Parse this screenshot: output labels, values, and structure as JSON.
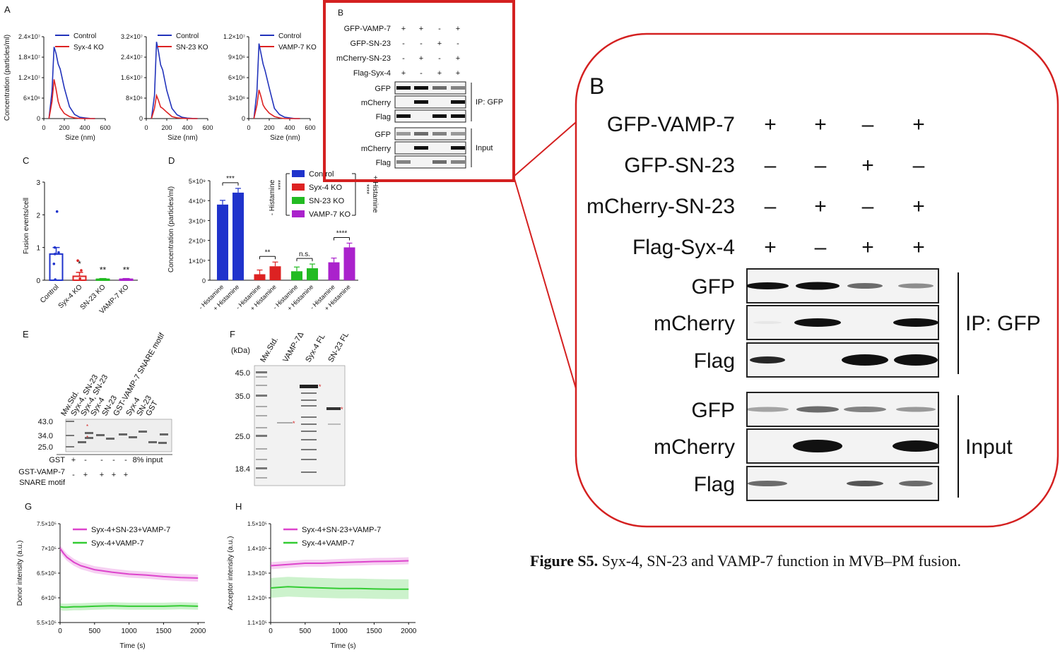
{
  "figure": {
    "caption_label": "Figure S5.",
    "caption_text": "Syx-4, SN-23 and VAMP-7 function in MVB–PM fusion.",
    "accent_color": "#d42020"
  },
  "panel_a": {
    "letter": "A",
    "ylabel": "Concentration (particles/ml)",
    "xlabel": "Size (nm)",
    "x_ticks": [
      "0",
      "200",
      "400",
      "600"
    ],
    "plots": [
      {
        "legend": [
          "Control",
          "Syx-4 KO"
        ],
        "y_ticks": [
          "0",
          "6×10⁶",
          "1.2×10⁷",
          "1.8×10⁷",
          "2.4×10⁷"
        ]
      },
      {
        "legend": [
          "Control",
          "SN-23 KO"
        ],
        "y_ticks": [
          "0",
          "8×10⁶",
          "1.6×10⁷",
          "2.4×10⁷",
          "3.2×10⁷"
        ]
      },
      {
        "legend": [
          "Control",
          "VAMP-7 KO"
        ],
        "y_ticks": [
          "0",
          "3×10⁶",
          "6×10⁶",
          "9×10⁶",
          "1.2×10⁷"
        ]
      }
    ]
  },
  "panel_b_small": {
    "letter": "B",
    "conditions": [
      {
        "label": "GFP-VAMP-7",
        "signs": [
          "+",
          "+",
          "-",
          "+"
        ]
      },
      {
        "label": "GFP-SN-23",
        "signs": [
          "-",
          "-",
          "+",
          "-"
        ]
      },
      {
        "label": "mCherry-SN-23",
        "signs": [
          "-",
          "+",
          "-",
          "+"
        ]
      },
      {
        "label": "Flag-Syx-4",
        "signs": [
          "+",
          "-",
          "+",
          "+"
        ]
      }
    ],
    "blots": [
      "GFP",
      "mCherry",
      "Flag",
      "GFP",
      "mCherry",
      "Flag"
    ],
    "group_labels": [
      "IP: GFP",
      "Input"
    ]
  },
  "panel_b_zoom": {
    "letter": "B",
    "conditions": [
      {
        "label": "GFP-VAMP-7",
        "signs": [
          "+",
          "+",
          "–",
          "+"
        ]
      },
      {
        "label": "GFP-SN-23",
        "signs": [
          "–",
          "–",
          "+",
          "–"
        ]
      },
      {
        "label": "mCherry-SN-23",
        "signs": [
          "–",
          "+",
          "–",
          "+"
        ]
      },
      {
        "label": "Flag-Syx-4",
        "signs": [
          "+",
          "–",
          "+",
          "+"
        ]
      }
    ],
    "blots": [
      "GFP",
      "mCherry",
      "Flag",
      "GFP",
      "mCherry",
      "Flag"
    ],
    "group_labels": [
      "IP: GFP",
      "Input"
    ]
  },
  "panel_c": {
    "letter": "C",
    "ylabel": "Fusion events/cell",
    "y_ticks": [
      "0",
      "1",
      "2",
      "3"
    ],
    "categories": [
      "Control",
      "Syx-4 KO",
      "SN-23 KO",
      "VAMP-7 KO"
    ],
    "significance": [
      "",
      "*",
      "**",
      "**"
    ]
  },
  "panel_d": {
    "letter": "D",
    "ylabel": "Concentration (particles/ml)",
    "y_ticks": [
      "0",
      "1×10⁹",
      "2×10⁹",
      "3×10⁹",
      "4×10⁹",
      "5×10⁹"
    ],
    "legend": [
      "Control",
      "Syx-4 KO",
      "SN-23 KO",
      "VAMP-7 KO"
    ],
    "bracket_left": "- Histamine",
    "bracket_right": "+ Histamine",
    "bracket_stars": "****",
    "x_labels": [
      "- Histamine",
      "+ Histamine"
    ],
    "pair_significance": [
      "***",
      "**",
      "n.s.",
      "****"
    ]
  },
  "panel_e": {
    "letter": "E",
    "lane_labels": [
      "Mw.Std.",
      "Syx-4, SN-23",
      "Syx-4, SN-23",
      "Syx-4",
      "SN-23",
      "GST-VAMP-7 SNARE motif",
      "Syx-4",
      "SN-23",
      "GST"
    ],
    "mw_marks": [
      "43.0",
      "34.0",
      "25.0"
    ],
    "row1_label": "GST",
    "row1_signs": [
      "+",
      "-",
      "-",
      "-",
      "-"
    ],
    "row2_label": "GST-VAMP-7",
    "row2_label_b": "SNARE motif",
    "row2_signs": [
      "-",
      "+",
      "+",
      "+",
      "+"
    ],
    "input_label": "8% input"
  },
  "panel_f": {
    "letter": "F",
    "kda_label": "(kDa)",
    "lane_labels": [
      "Mw.Std.",
      "VAMP-7Δ",
      "Syx-4 FL",
      "SN-23 FL"
    ],
    "mw_marks": [
      "45.0",
      "35.0",
      "25.0",
      "18.4"
    ]
  },
  "panel_g": {
    "letter": "G",
    "ylabel": "Donor intensity (a.u.)",
    "xlabel": "Time (s)",
    "x_ticks": [
      "0",
      "500",
      "1000",
      "1500",
      "2000"
    ],
    "y_ticks": [
      "5.5×10⁵",
      "6×10⁵",
      "6.5×10⁵",
      "7×10⁵",
      "7.5×10⁵"
    ],
    "legend": [
      "Syx-4+SN-23+VAMP-7",
      "Syx-4+VAMP-7"
    ]
  },
  "panel_h": {
    "letter": "H",
    "ylabel": "Acceptor intensity (a.u.)",
    "xlabel": "Time (s)",
    "x_ticks": [
      "0",
      "500",
      "1000",
      "1500",
      "2000"
    ],
    "y_ticks": [
      "1.1×10⁵",
      "1.2×10⁵",
      "1.3×10⁵",
      "1.4×10⁵",
      "1.5×10⁵"
    ],
    "legend": [
      "Syx-4+SN-23+VAMP-7",
      "Syx-4+VAMP-7"
    ]
  },
  "chart_data": [
    {
      "type": "line",
      "xlim": [
        0,
        600
      ],
      "ylim": [
        0,
        24000000
      ],
      "x": [
        50,
        80,
        100,
        120,
        140,
        160,
        200,
        250,
        300,
        350,
        400,
        450,
        500
      ],
      "series": [
        {
          "name": "Control",
          "color": "#2233bb",
          "values": [
            0,
            8000000,
            21000000,
            19000000,
            16000000,
            14500000,
            9000000,
            3500000,
            1200000,
            400000,
            200000,
            50000,
            0
          ]
        },
        {
          "name": "Syx-4 KO",
          "color": "#dd2222",
          "values": [
            0,
            5000000,
            11500000,
            8500000,
            5000000,
            3200000,
            1500000,
            600000,
            200000,
            50000,
            0,
            0,
            0
          ]
        }
      ]
    },
    {
      "type": "line",
      "xlim": [
        0,
        600
      ],
      "ylim": [
        0,
        32000000
      ],
      "x": [
        50,
        80,
        100,
        120,
        140,
        160,
        200,
        250,
        300,
        350,
        400,
        450,
        500
      ],
      "series": [
        {
          "name": "Control",
          "color": "#2233bb",
          "values": [
            0,
            9000000,
            30000000,
            26000000,
            21000000,
            19000000,
            11000000,
            4000000,
            1500000,
            500000,
            200000,
            50000,
            0
          ]
        },
        {
          "name": "SN-23 KO",
          "color": "#dd2222",
          "values": [
            0,
            4000000,
            9000000,
            7000000,
            4500000,
            4000000,
            2500000,
            800000,
            300000,
            100000,
            0,
            0,
            0
          ]
        }
      ]
    },
    {
      "type": "line",
      "xlim": [
        0,
        600
      ],
      "ylim": [
        0,
        12000000
      ],
      "x": [
        50,
        80,
        100,
        120,
        140,
        160,
        200,
        250,
        300,
        350,
        400,
        450,
        500
      ],
      "series": [
        {
          "name": "Control",
          "color": "#2233bb",
          "values": [
            0,
            4000000,
            11000000,
            9500000,
            8000000,
            7000000,
            4500000,
            1500000,
            600000,
            200000,
            100000,
            0,
            0
          ]
        },
        {
          "name": "VAMP-7 KO",
          "color": "#dd2222",
          "values": [
            0,
            2000000,
            4200000,
            3200000,
            2000000,
            1500000,
            800000,
            300000,
            100000,
            0,
            0,
            0,
            0
          ]
        }
      ]
    },
    {
      "type": "bar",
      "categories": [
        "Control",
        "Syx-4 KO",
        "SN-23 KO",
        "VAMP-7 KO"
      ],
      "ylim": [
        0,
        3
      ],
      "values": [
        0.8,
        0.12,
        0.03,
        0.03
      ],
      "errors": [
        0.2,
        0.12,
        0.02,
        0.02
      ],
      "colors": [
        "#1f33cc",
        "#dd2222",
        "#22bb22",
        "#aa22cc"
      ]
    },
    {
      "type": "bar",
      "categories": [
        "Control",
        "Syx-4 KO",
        "SN-23 KO",
        "VAMP-7 KO"
      ],
      "ylim": [
        0,
        5000000000
      ],
      "series": [
        {
          "name": "- Histamine",
          "values": [
            3800000000,
            300000000,
            450000000,
            900000000
          ]
        },
        {
          "name": "+ Histamine",
          "values": [
            4400000000,
            700000000,
            600000000,
            1650000000
          ]
        }
      ],
      "colors": [
        "#1f33cc",
        "#dd2222",
        "#22bb22",
        "#aa22cc"
      ]
    },
    {
      "type": "line",
      "xlim": [
        0,
        2100
      ],
      "ylim": [
        550000,
        750000
      ],
      "x": [
        0,
        50,
        100,
        200,
        300,
        500,
        750,
        1000,
        1250,
        1500,
        1750,
        2000
      ],
      "series": [
        {
          "name": "Syx-4+SN-23+VAMP-7",
          "color": "#dd44cc",
          "values": [
            700000,
            690000,
            682000,
            672000,
            665000,
            657000,
            652000,
            648000,
            646000,
            643000,
            641000,
            640000
          ]
        },
        {
          "name": "Syx-4+VAMP-7",
          "color": "#33cc33",
          "values": [
            582000,
            581000,
            581000,
            582000,
            582000,
            583000,
            584000,
            583000,
            583000,
            583000,
            584000,
            583000
          ]
        }
      ]
    },
    {
      "type": "line",
      "xlim": [
        0,
        2100
      ],
      "ylim": [
        110000,
        150000
      ],
      "x": [
        0,
        250,
        500,
        750,
        1000,
        1250,
        1500,
        1750,
        2000
      ],
      "series": [
        {
          "name": "Syx-4+SN-23+VAMP-7",
          "color": "#dd44cc",
          "values": [
            133000,
            133500,
            134000,
            134000,
            134300,
            134500,
            134700,
            134800,
            135000
          ]
        },
        {
          "name": "Syx-4+VAMP-7",
          "color": "#33cc33",
          "values": [
            124000,
            124500,
            124200,
            124000,
            123800,
            123800,
            123600,
            123500,
            123500
          ]
        }
      ]
    }
  ]
}
